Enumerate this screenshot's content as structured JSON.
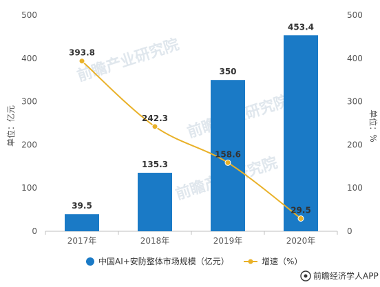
{
  "chart_data": {
    "type": "bar",
    "categories": [
      "2017年",
      "2018年",
      "2019年",
      "2020年"
    ],
    "series": [
      {
        "name": "中国AI+安防整体市场规模（亿元）",
        "type": "bar",
        "axis": "left",
        "color": "#1a7ac6",
        "values": [
          39.5,
          135.3,
          350,
          453.4
        ],
        "labels": [
          "39.5",
          "135.3",
          "350",
          "453.4"
        ]
      },
      {
        "name": "增速（%）",
        "type": "line",
        "axis": "right",
        "color": "#e9b128",
        "values": [
          393.8,
          242.3,
          158.6,
          29.5
        ],
        "labels": [
          "393.8",
          "242.3",
          "158.6",
          "29.5"
        ]
      }
    ],
    "y_left": {
      "label": "单位：亿元",
      "ylim": [
        0,
        500
      ],
      "ticks": [
        "0",
        "100",
        "200",
        "300",
        "400",
        "500"
      ]
    },
    "y_right": {
      "label": "单位：%",
      "ylim": [
        0,
        500
      ],
      "ticks": [
        "0",
        "100",
        "200",
        "300",
        "400",
        "500"
      ]
    },
    "legend": {
      "position": "bottom"
    },
    "grid": false
  },
  "watermark": {
    "text": "前瞻产业研究院"
  },
  "brand": {
    "text": "前瞻经济学人APP",
    "icon": "qianzhan-logo-icon"
  }
}
